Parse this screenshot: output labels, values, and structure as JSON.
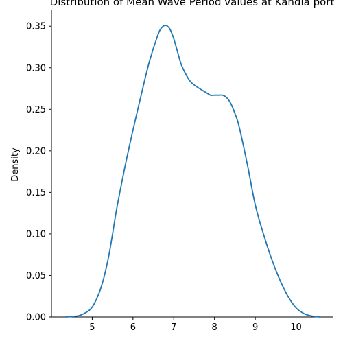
{
  "chart_data": {
    "type": "line",
    "title": "Distribution of Mean Wave Period values at Kandla port",
    "xlabel": "",
    "ylabel": "Density",
    "xlim": [
      4.0,
      10.9
    ],
    "ylim": [
      0,
      0.37
    ],
    "xticks": [
      5,
      6,
      7,
      8,
      9,
      10
    ],
    "yticks": [
      0.0,
      0.05,
      0.1,
      0.15,
      0.2,
      0.25,
      0.3,
      0.35
    ],
    "ytick_labels": [
      "0.00",
      "0.05",
      "0.10",
      "0.15",
      "0.20",
      "0.25",
      "0.30",
      "0.35"
    ],
    "grid": false,
    "series": [
      {
        "color": "#1f77b4",
        "x": [
          4.35,
          4.5,
          4.7,
          4.9,
          5.0,
          5.1,
          5.2,
          5.3,
          5.4,
          5.5,
          5.6,
          5.8,
          6.0,
          6.2,
          6.4,
          6.6,
          6.7,
          6.8,
          6.9,
          7.0,
          7.1,
          7.2,
          7.4,
          7.6,
          7.8,
          7.9,
          8.0,
          8.1,
          8.2,
          8.3,
          8.4,
          8.5,
          8.6,
          8.8,
          9.0,
          9.2,
          9.4,
          9.6,
          9.8,
          10.0,
          10.2,
          10.4,
          10.6
        ],
        "y": [
          0.0,
          0.0005,
          0.002,
          0.007,
          0.012,
          0.021,
          0.033,
          0.05,
          0.072,
          0.1,
          0.13,
          0.18,
          0.225,
          0.267,
          0.307,
          0.338,
          0.348,
          0.351,
          0.347,
          0.335,
          0.318,
          0.302,
          0.284,
          0.276,
          0.27,
          0.267,
          0.267,
          0.267,
          0.267,
          0.264,
          0.257,
          0.245,
          0.23,
          0.185,
          0.135,
          0.1,
          0.07,
          0.045,
          0.025,
          0.011,
          0.004,
          0.001,
          0.0
        ]
      }
    ]
  }
}
